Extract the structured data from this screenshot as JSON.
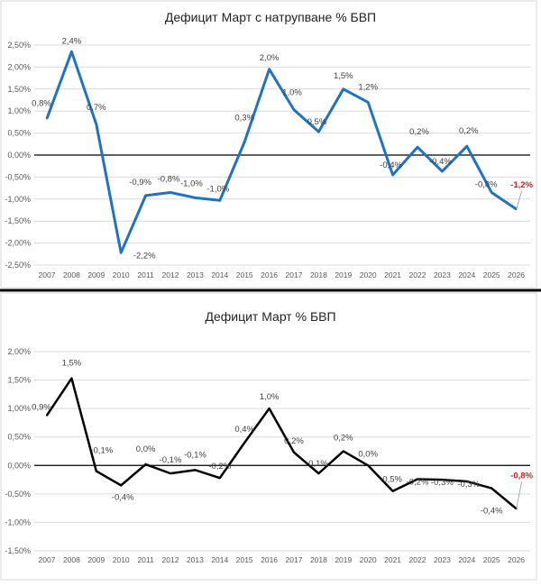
{
  "chart_data": [
    {
      "type": "line",
      "title": "Дефицит Март с натрупване % БВП",
      "categories": [
        "2007",
        "2008",
        "2009",
        "2010",
        "2011",
        "2012",
        "2013",
        "2014",
        "2015",
        "2016",
        "2017",
        "2018",
        "2019",
        "2020",
        "2021",
        "2022",
        "2023",
        "2024",
        "2025",
        "2026"
      ],
      "values": [
        0.83,
        2.35,
        0.7,
        -2.22,
        -0.92,
        -0.85,
        -0.97,
        -1.03,
        0.3,
        1.95,
        1.03,
        0.53,
        1.5,
        1.2,
        -0.45,
        0.18,
        -0.37,
        0.2,
        -0.85,
        -1.23
      ],
      "data_labels": [
        "0,8%",
        "2,4%",
        "0,7%",
        "-2,2%",
        "-0,9%",
        "-0,8%",
        "-1,0%",
        "-1,0%",
        "0,3%",
        "2,0%",
        "1,0%",
        "0,5%",
        "1,5%",
        "1,2%",
        "-0,4%",
        "0,2%",
        "-0,4%",
        "0,2%",
        "-0,8%",
        "-1,2%"
      ],
      "yticks": [
        "2,50%",
        "2,00%",
        "1,50%",
        "1,00%",
        "0,50%",
        "0,00%",
        "-0,50%",
        "-1,00%",
        "-1,50%",
        "-2,00%",
        "-2,50%"
      ],
      "ylim": [
        -2.5,
        2.5
      ],
      "grid": true,
      "line_color": "#1f73c2",
      "highlight_color": "#e8141c"
    },
    {
      "type": "line",
      "title": "Дефицит Март % БВП",
      "categories": [
        "2007",
        "2008",
        "2009",
        "2010",
        "2011",
        "2012",
        "2013",
        "2014",
        "2015",
        "2016",
        "2017",
        "2018",
        "2019",
        "2020",
        "2021",
        "2022",
        "2023",
        "2024",
        "2025",
        "2026"
      ],
      "values": [
        0.88,
        1.53,
        -0.1,
        -0.35,
        0.02,
        -0.14,
        -0.08,
        -0.22,
        0.4,
        1.0,
        0.23,
        -0.14,
        0.25,
        0.0,
        -0.45,
        -0.24,
        -0.25,
        -0.28,
        -0.4,
        -0.76
      ],
      "data_labels": [
        "0,9%",
        "1,5%",
        "-0,1%",
        "-0,4%",
        "0,0%",
        "-0,1%",
        "-0,1%",
        "-0,2%",
        "0,4%",
        "1,0%",
        "0,2%",
        "-0,1%",
        "0,2%",
        "0,0%",
        "-0,5%",
        "-0,2%",
        "-0,3%",
        "-0,3%",
        "-0,4%",
        "-0,8%"
      ],
      "yticks": [
        "2,00%",
        "1,50%",
        "1,00%",
        "0,50%",
        "0,00%",
        "-0,50%",
        "-1,00%",
        "-1,50%"
      ],
      "ylim": [
        -1.5,
        2.0
      ],
      "grid": true,
      "line_color": "#000000",
      "highlight_color": "#e8141c"
    }
  ]
}
